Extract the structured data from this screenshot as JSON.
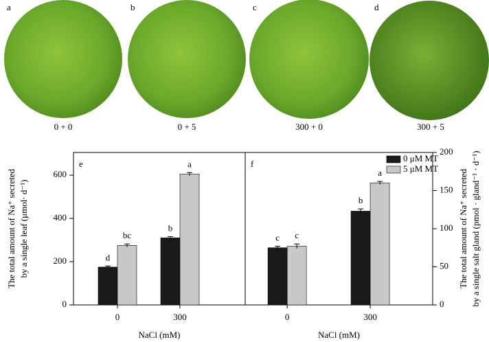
{
  "photos": [
    {
      "panel": "a",
      "label": "0 + 0"
    },
    {
      "panel": "b",
      "label": "0 + 5"
    },
    {
      "panel": "c",
      "label": "300 + 0"
    },
    {
      "panel": "d",
      "label": "300 + 5"
    }
  ],
  "chart_data": [
    {
      "type": "bar",
      "panel": "e",
      "y_label": [
        "The total amount of Na⁺ secreted",
        "by a single leaf (μmol· d⁻¹)"
      ],
      "x_label": "NaCl (mM)",
      "categories": [
        "0",
        "300"
      ],
      "series": [
        {
          "color": "#1a1a1a",
          "values": [
            175,
            310
          ],
          "errors": [
            5,
            6
          ],
          "letters": [
            "d",
            "b"
          ]
        },
        {
          "color": "#c8c8c8",
          "values": [
            275,
            605
          ],
          "errors": [
            7,
            7
          ],
          "letters": [
            "bc",
            "a"
          ]
        }
      ],
      "ylim": [
        0,
        705
      ],
      "yticks": [
        0,
        200,
        400,
        600
      ],
      "y_axis_side": "left"
    },
    {
      "type": "bar",
      "panel": "f",
      "y_label": [
        "The total amount of Na⁺ secreted",
        "by a single salt gland (pmol · gland⁻¹ · d⁻¹)"
      ],
      "x_label": "NaCl (mM)",
      "categories": [
        "0",
        "300"
      ],
      "series": [
        {
          "name": "0 μM MT",
          "color": "#1a1a1a",
          "values": [
            75,
            123
          ],
          "errors": [
            2,
            3
          ],
          "letters": [
            "c",
            "b"
          ]
        },
        {
          "name": "5 μM MT",
          "color": "#c8c8c8",
          "values": [
            77,
            160
          ],
          "errors": [
            3,
            2
          ],
          "letters": [
            "c",
            "a"
          ]
        }
      ],
      "ylim": [
        0,
        200
      ],
      "yticks": [
        0,
        50,
        100,
        150,
        200
      ],
      "y_axis_side": "right",
      "legend": "upper right"
    }
  ]
}
